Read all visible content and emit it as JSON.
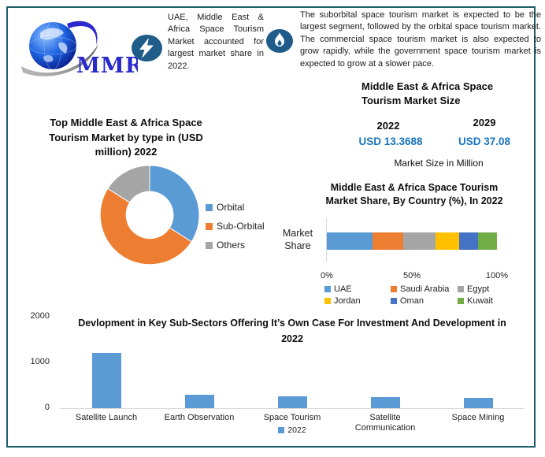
{
  "colors": {
    "frame_border": "#1c5d68",
    "icon_badge": "#1f5c8a",
    "value_blue": "#1673bd",
    "series_blue": "#5b9bd5"
  },
  "logo": {
    "brand": "MMR"
  },
  "callouts": [
    {
      "icon": "lightning",
      "text": "UAE, Middle East & Africa Space Tourism Market accounted for largest market share in 2022."
    },
    {
      "icon": "flame",
      "text": "The suborbital space tourism market is expected to be the largest segment, followed by the orbital space tourism market. The commercial space tourism market is also expected to grow rapidly, while the government space tourism market is expected to grow at a slower pace."
    }
  ],
  "market_size": {
    "title": "Middle East & Africa Space Tourism Market Size",
    "columns": [
      {
        "year": "2022",
        "value": "USD 13.3688"
      },
      {
        "year": "2029",
        "value": "USD 37.08"
      }
    ],
    "caption": "Market Size in Million"
  },
  "chart_data": [
    {
      "id": "market-by-type-donut",
      "type": "pie",
      "donut": true,
      "title": "Top Middle East & Africa Space Tourism Market by type in (USD million) 2022",
      "categories": [
        "Orbital",
        "Sub-Orbital",
        "Others"
      ],
      "values": [
        34,
        50,
        16
      ],
      "value_note": "approx share of ring, percent",
      "colors": [
        "#5B9BD5",
        "#ED7D31",
        "#A5A5A5"
      ],
      "legend_position": "right",
      "start_angle": "top-clockwise"
    },
    {
      "id": "market-share-by-country",
      "type": "bar",
      "subtype": "horizontal-stacked",
      "title": "Middle East & Africa Space Tourism Market Share, By Country (%), In 2022",
      "axis_label": "Market Share",
      "categories": [
        "UAE",
        "Saudi Arabia",
        "Egypt",
        "Jordan",
        "Oman",
        "Kuwait"
      ],
      "values": [
        27,
        18,
        19,
        14,
        11,
        11
      ],
      "colors": [
        "#5B9BD5",
        "#ED7D31",
        "#A5A5A5",
        "#FFC000",
        "#4472C4",
        "#70AD47"
      ],
      "x_ticks": [
        "0%",
        "50%",
        "100%"
      ],
      "xlim": [
        0,
        100
      ],
      "legend_position": "bottom",
      "grid": false
    },
    {
      "id": "subsector-development",
      "type": "bar",
      "title": "Devlopment in Key Sub-Sectors Offering It’s Own Case For Investment And Development in 2022",
      "categories": [
        "Satellite Launch",
        "Earth Observation",
        "Space Tourism",
        "Satellite Communication",
        "Space Mining"
      ],
      "values": [
        1200,
        300,
        260,
        240,
        220
      ],
      "series_name": "2022",
      "bar_color": "#5B9BD5",
      "y_ticks": [
        0,
        1000,
        2000
      ],
      "ylim": [
        0,
        2000
      ],
      "legend_position": "bottom",
      "grid": false
    }
  ]
}
